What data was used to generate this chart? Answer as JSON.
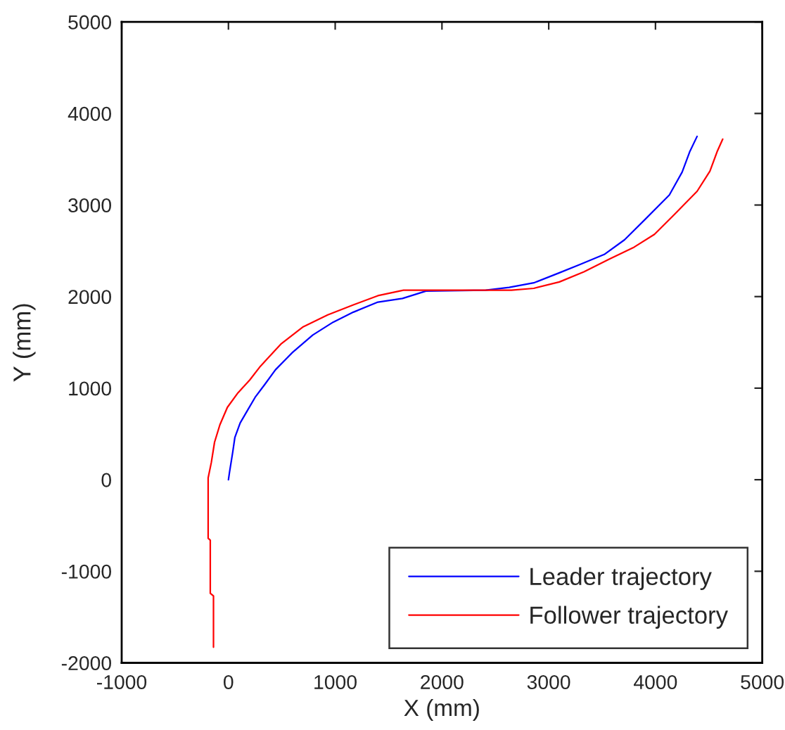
{
  "chart_data": {
    "type": "line",
    "xlabel": "X (mm)",
    "ylabel": "Y (mm)",
    "xlim": [
      -1000,
      5000
    ],
    "xticks": [
      -1000,
      0,
      1000,
      2000,
      3000,
      4000,
      5000
    ],
    "ylim": [
      -2000,
      5000
    ],
    "yticks": [
      -2000,
      -1000,
      0,
      1000,
      2000,
      3000,
      4000,
      5000
    ],
    "grid": false,
    "legend": "bottom right",
    "line_style": "solid",
    "marker": "none",
    "series": [
      {
        "name": "Leader trajectory",
        "color": "#0000ff",
        "x": [
          0,
          10,
          40,
          60,
          110,
          180,
          250,
          340,
          440,
          600,
          790,
          980,
          1170,
          1400,
          1630,
          1850,
          2410,
          2630,
          2860,
          3100,
          3290,
          3520,
          3710,
          3900,
          4130,
          4250,
          4320,
          4390
        ],
        "values": [
          0,
          80,
          300,
          460,
          620,
          760,
          900,
          1040,
          1200,
          1390,
          1580,
          1720,
          1830,
          1940,
          1980,
          2060,
          2070,
          2100,
          2150,
          2260,
          2350,
          2460,
          2620,
          2840,
          3110,
          3360,
          3580,
          3750
        ]
      },
      {
        "name": "Follower trajectory",
        "color": "#ff0000",
        "x": [
          -140,
          -140,
          -170,
          -170,
          -190,
          -190,
          -160,
          -130,
          -80,
          -10,
          90,
          200,
          300,
          490,
          700,
          930,
          1170,
          1400,
          1640,
          2650,
          2860,
          3100,
          3330,
          3570,
          3800,
          3990,
          4180,
          4390,
          4510,
          4580,
          4630
        ],
        "values": [
          -1830,
          -1270,
          -1240,
          -660,
          -640,
          20,
          190,
          410,
          600,
          790,
          950,
          1090,
          1240,
          1480,
          1670,
          1800,
          1910,
          2010,
          2070,
          2070,
          2090,
          2160,
          2270,
          2410,
          2540,
          2680,
          2900,
          3150,
          3370,
          3590,
          3720
        ]
      }
    ]
  }
}
